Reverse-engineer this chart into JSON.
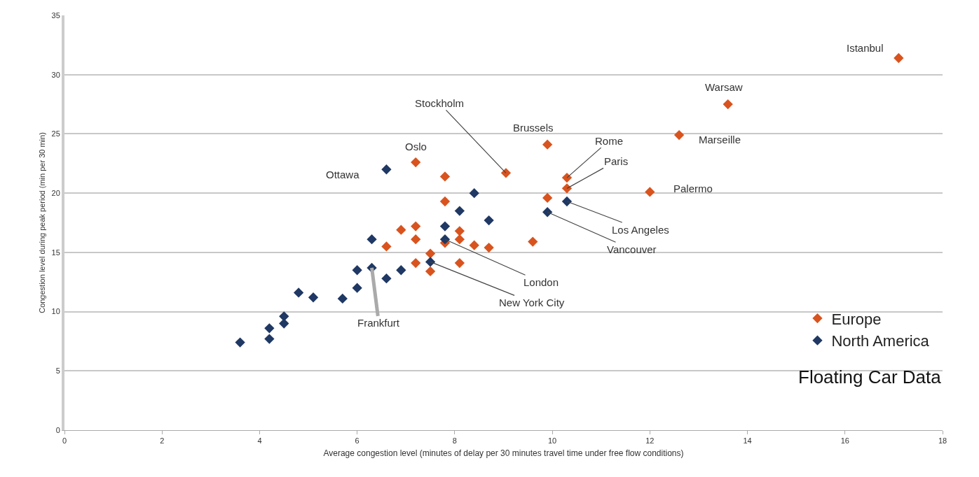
{
  "chart_data": {
    "type": "scatter",
    "xlabel": "Average congestion level (minutes of delay per 30 minutes travel time under free flow conditions)",
    "ylabel": "Congestion level during peak period (min per 30 min)",
    "xlim": [
      0,
      18
    ],
    "xticks": [
      0,
      2,
      4,
      6,
      8,
      10,
      12,
      14,
      16,
      18
    ],
    "ylim": [
      0,
      35
    ],
    "yticks": [
      0,
      5,
      10,
      15,
      20,
      25,
      30,
      35
    ],
    "grid": "y",
    "legend": "bottom right",
    "marker": "diamond",
    "series": [
      {
        "name": "Europe",
        "color": "#d9531e",
        "x": [
          17.1,
          13.6,
          12.6,
          12.0,
          9.9,
          10.3,
          10.3,
          9.9,
          9.05,
          7.2,
          7.8,
          7.8,
          7.2,
          6.9,
          7.2,
          6.6,
          7.8,
          8.1,
          8.1,
          8.4,
          8.7,
          7.5,
          7.2,
          7.5,
          8.1,
          9.6
        ],
        "values": [
          31.4,
          27.5,
          24.9,
          20.1,
          24.1,
          21.3,
          20.4,
          19.6,
          21.7,
          22.6,
          21.4,
          19.3,
          17.2,
          16.9,
          16.1,
          15.5,
          15.8,
          16.8,
          16.1,
          15.6,
          15.4,
          14.9,
          14.1,
          13.4,
          14.1,
          15.9
        ]
      },
      {
        "name": "North America",
        "color": "#1f3864",
        "x": [
          6.6,
          8.4,
          8.1,
          8.7,
          7.8,
          7.8,
          6.3,
          7.5,
          6.0,
          6.3,
          6.6,
          6.9,
          6.0,
          4.8,
          5.1,
          5.7,
          4.5,
          4.5,
          4.2,
          4.2,
          3.6,
          10.3,
          9.9
        ],
        "values": [
          22.0,
          20.0,
          18.5,
          17.7,
          17.2,
          16.1,
          16.1,
          14.2,
          13.5,
          13.7,
          12.8,
          13.5,
          12.0,
          11.6,
          11.2,
          11.1,
          9.6,
          9.0,
          8.6,
          7.7,
          7.4,
          19.3,
          18.4
        ]
      }
    ],
    "annotations": [
      {
        "text": "Istanbul",
        "x": 17.1,
        "y": 31.4
      },
      {
        "text": "Warsaw",
        "x": 13.6,
        "y": 27.5
      },
      {
        "text": "Marseille",
        "x": 12.6,
        "y": 24.9
      },
      {
        "text": "Palermo",
        "x": 12.0,
        "y": 20.1
      },
      {
        "text": "Brussels",
        "x": 9.9,
        "y": 24.1
      },
      {
        "text": "Rome",
        "x": 10.3,
        "y": 21.3
      },
      {
        "text": "Paris",
        "x": 10.3,
        "y": 20.4
      },
      {
        "text": "Stockholm",
        "x": 9.05,
        "y": 21.7
      },
      {
        "text": "Oslo",
        "x": 7.2,
        "y": 22.6
      },
      {
        "text": "Ottawa",
        "x": 6.6,
        "y": 22.0
      },
      {
        "text": "Los Angeles",
        "x": 10.3,
        "y": 19.3
      },
      {
        "text": "Vancouver",
        "x": 9.9,
        "y": 18.4
      },
      {
        "text": "London",
        "x": 7.8,
        "y": 16.1
      },
      {
        "text": "New York City",
        "x": 7.5,
        "y": 14.2
      },
      {
        "text": "Frankfurt",
        "x": 6.3,
        "y": 13.7
      },
      "Floating Car Data"
    ]
  }
}
